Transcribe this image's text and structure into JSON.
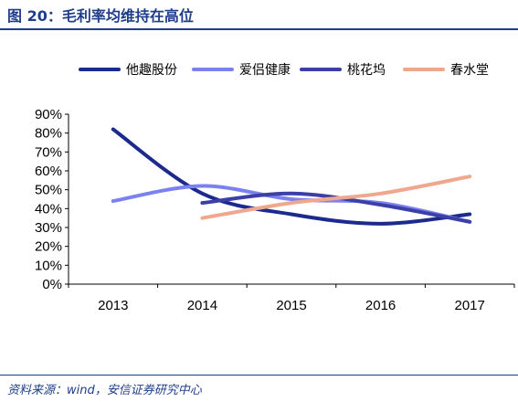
{
  "title": "图 20：毛利率均维持在高位",
  "source": "资料来源：wind，安信证券研究中心",
  "chart_data": {
    "type": "line",
    "x": [
      "2013",
      "2014",
      "2015",
      "2016",
      "2017"
    ],
    "ylim": [
      0,
      90
    ],
    "yticks": [
      "0%",
      "10%",
      "20%",
      "30%",
      "40%",
      "50%",
      "60%",
      "70%",
      "80%",
      "90%"
    ],
    "grid": false,
    "legend_position": "top",
    "series": [
      {
        "name": "他趣股份",
        "color": "#1b2a8c",
        "values": [
          82,
          48,
          37,
          32,
          37
        ]
      },
      {
        "name": "爱侣健康",
        "color": "#7b82f0",
        "values": [
          44,
          52,
          45,
          43,
          33
        ]
      },
      {
        "name": "桃花坞",
        "color": "#3b3fa6",
        "values": [
          null,
          43,
          48,
          42,
          33
        ]
      },
      {
        "name": "春水堂",
        "color": "#efa88e",
        "values": [
          null,
          35,
          43,
          48,
          57
        ]
      }
    ]
  }
}
